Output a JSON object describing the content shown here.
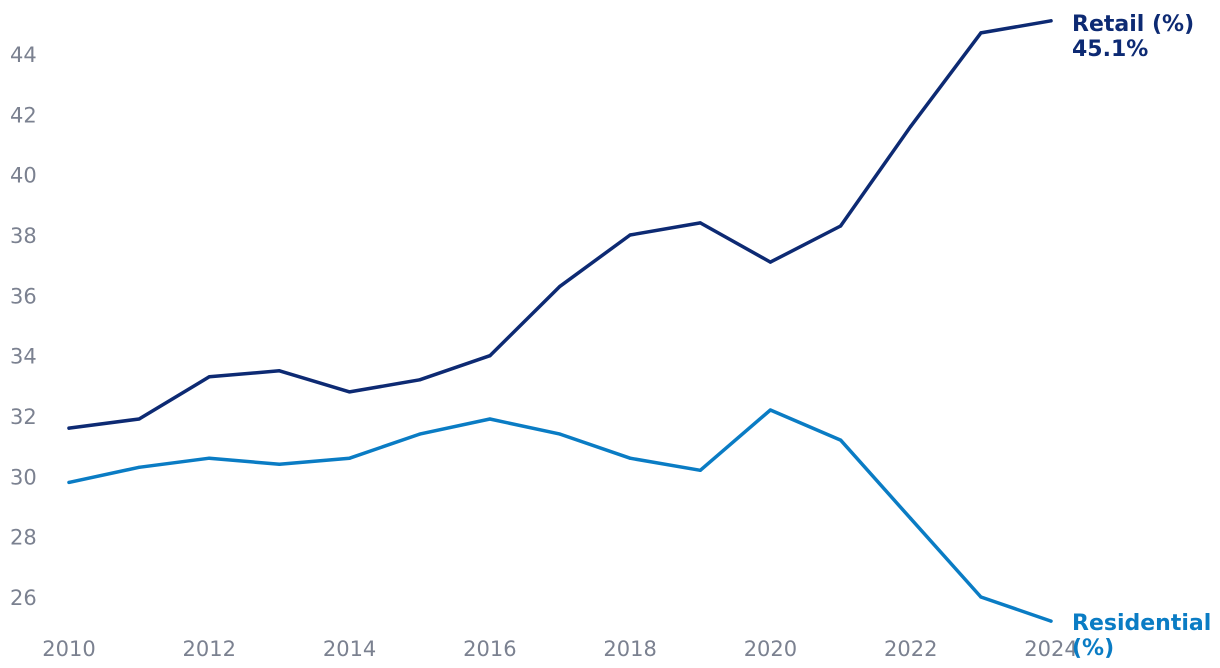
{
  "chart_data": {
    "type": "line",
    "title": "",
    "xlabel": "",
    "ylabel": "",
    "x": [
      2010,
      2011,
      2012,
      2013,
      2014,
      2015,
      2016,
      2017,
      2018,
      2019,
      2020,
      2021,
      2022,
      2023,
      2024
    ],
    "xlim": [
      2010,
      2024
    ],
    "ylim": [
      25,
      45.5
    ],
    "x_ticks": [
      "2010",
      "2012",
      "2014",
      "2016",
      "2018",
      "2020",
      "2022",
      "2024"
    ],
    "y_ticks": [
      "26",
      "28",
      "30",
      "32",
      "34",
      "36",
      "38",
      "40",
      "42",
      "44"
    ],
    "grid": false,
    "legend": "none (series labelled at line ends)",
    "series": [
      {
        "name": "Retail (%)",
        "end_label_line1": "Retail (%)",
        "end_label_line2": "45.1%",
        "color": "#0d2a73",
        "values": [
          31.6,
          31.9,
          33.3,
          33.5,
          32.8,
          33.2,
          34.0,
          36.3,
          38.0,
          38.4,
          37.1,
          38.3,
          41.6,
          44.7,
          45.1
        ]
      },
      {
        "name": "Residential (%)",
        "end_label_line1": "Residential",
        "end_label_line2": "(%)",
        "color": "#0a7cc4",
        "values": [
          29.8,
          30.3,
          30.6,
          30.4,
          30.6,
          31.4,
          31.9,
          31.4,
          30.6,
          30.2,
          32.2,
          31.2,
          28.6,
          26.0,
          25.2
        ]
      }
    ]
  }
}
